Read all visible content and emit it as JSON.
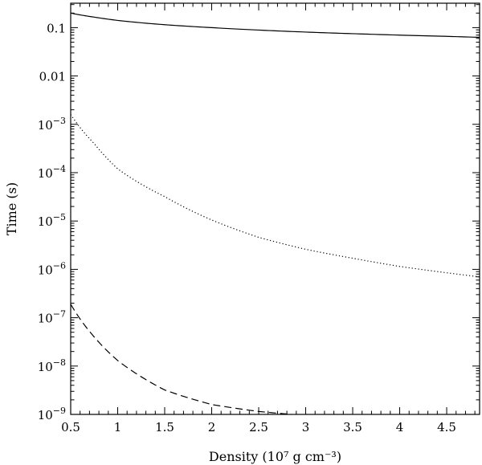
{
  "chart_data": {
    "type": "line",
    "xlabel": "Density (10⁷ g cm⁻³)",
    "ylabel": "Time (s)",
    "xlim": [
      0.5,
      4.85
    ],
    "ylim": [
      1e-09,
      0.32
    ],
    "yscale": "log",
    "grid": false,
    "x_ticks": [
      {
        "value": 0.5,
        "label": "0.5"
      },
      {
        "value": 1,
        "label": "1"
      },
      {
        "value": 1.5,
        "label": "1.5"
      },
      {
        "value": 2,
        "label": "2"
      },
      {
        "value": 2.5,
        "label": "2.5"
      },
      {
        "value": 3,
        "label": "3"
      },
      {
        "value": 3.5,
        "label": "3.5"
      },
      {
        "value": 4,
        "label": "4"
      },
      {
        "value": 4.5,
        "label": "4.5"
      }
    ],
    "y_ticks": [
      {
        "exp": -1,
        "label": "0.1",
        "sup": ""
      },
      {
        "exp": -2,
        "label": "0.01",
        "sup": ""
      },
      {
        "exp": -3,
        "label": "10",
        "sup": "−3"
      },
      {
        "exp": -4,
        "label": "10",
        "sup": "−4"
      },
      {
        "exp": -5,
        "label": "10",
        "sup": "−5"
      },
      {
        "exp": -6,
        "label": "10",
        "sup": "−6"
      },
      {
        "exp": -7,
        "label": "10",
        "sup": "−7"
      },
      {
        "exp": -8,
        "label": "10",
        "sup": "−8"
      },
      {
        "exp": -9,
        "label": "10",
        "sup": "−9"
      }
    ],
    "series": [
      {
        "style": "solid",
        "x": [
          0.5,
          0.75,
          1.0,
          1.5,
          2.0,
          2.5,
          3.0,
          3.5,
          4.0,
          4.5,
          4.85
        ],
        "y": [
          0.2,
          0.165,
          0.141,
          0.115,
          0.1,
          0.089,
          0.081,
          0.075,
          0.07,
          0.066,
          0.063
        ]
      },
      {
        "style": "dotted",
        "x": [
          0.5,
          0.75,
          1.0,
          1.5,
          2.0,
          2.5,
          3.0,
          3.5,
          4.0,
          4.5,
          4.85
        ],
        "y": [
          0.0016,
          0.0004,
          0.00012,
          3.2e-05,
          1.05e-05,
          4.6e-06,
          2.6e-06,
          1.7e-06,
          1.15e-06,
          8.5e-07,
          7e-07
        ]
      },
      {
        "style": "dashed",
        "x": [
          0.5,
          0.75,
          1.0,
          1.5,
          2.0,
          2.5,
          2.85
        ],
        "y": [
          1.9e-07,
          4e-08,
          1.3e-08,
          3.2e-09,
          1.6e-09,
          1.15e-09,
          1e-09
        ]
      }
    ]
  }
}
